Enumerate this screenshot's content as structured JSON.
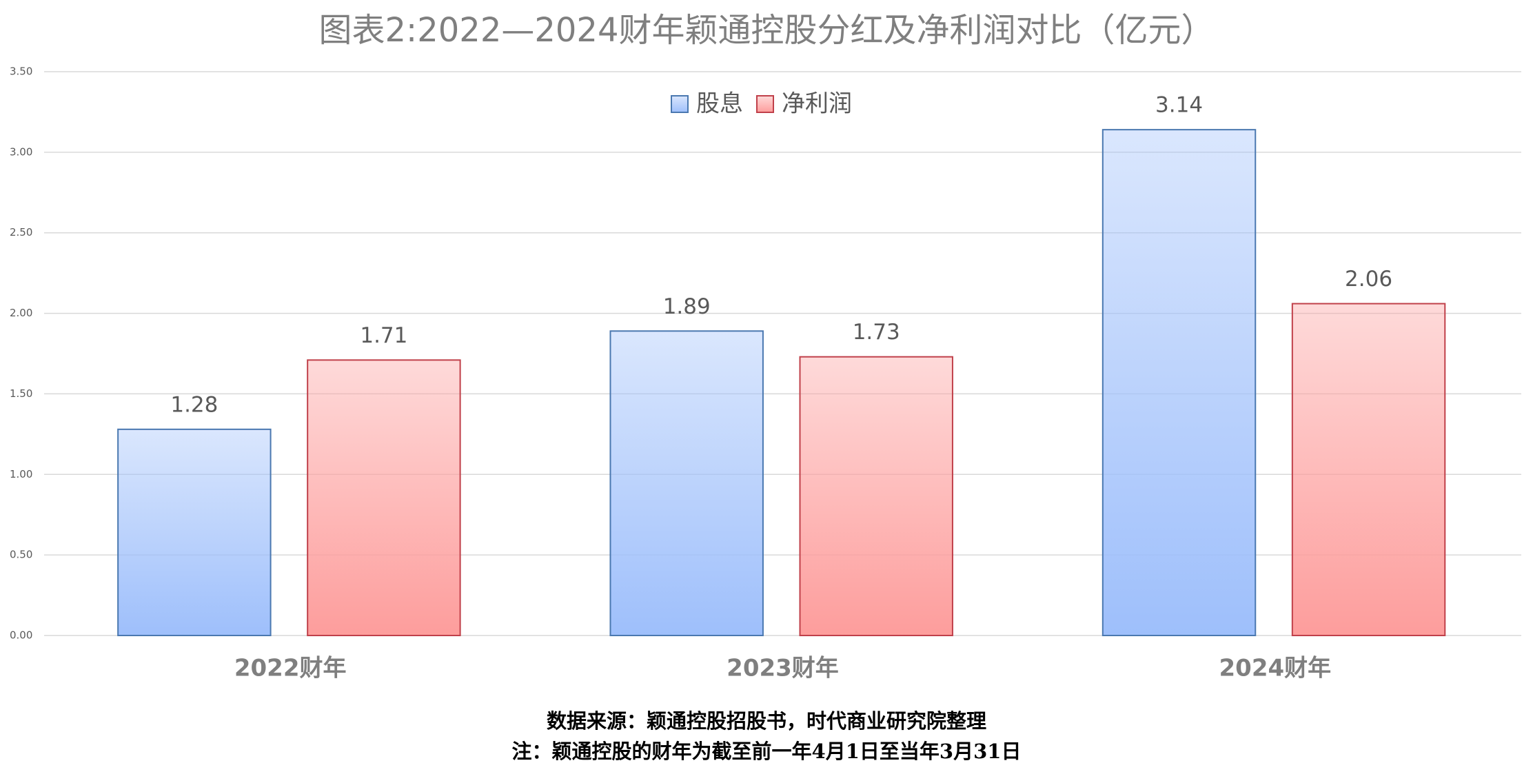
{
  "chart_data": {
    "type": "bar",
    "title": "图表2:2022—2024财年颖通控股分红及净利润对比（亿元）",
    "categories": [
      "2022财年",
      "2023财年",
      "2024财年"
    ],
    "series": [
      {
        "name": "股息",
        "color": "#9ebffb",
        "values": [
          1.28,
          1.89,
          3.14
        ]
      },
      {
        "name": "净利润",
        "color": "#fd9d9c",
        "values": [
          1.71,
          1.73,
          2.06
        ]
      }
    ],
    "ylim": [
      0,
      3.5
    ],
    "yticks": [
      {
        "value": 0,
        "label": "0.00"
      },
      {
        "value": 0.5,
        "label": "0.50"
      },
      {
        "value": 1,
        "label": "1.00"
      },
      {
        "value": 1.5,
        "label": "1.50"
      },
      {
        "value": 2,
        "label": "2.00"
      },
      {
        "value": 2.5,
        "label": "2.50"
      },
      {
        "value": 3,
        "label": "3.00"
      },
      {
        "value": 3.5,
        "label": "3.50"
      }
    ],
    "grid": true,
    "legend": "top",
    "source": "数据来源：颖通控股招股书，时代商业研究院整理",
    "note": "注：颖通控股的财年为截至前一年4月1日至当年3月31日"
  }
}
